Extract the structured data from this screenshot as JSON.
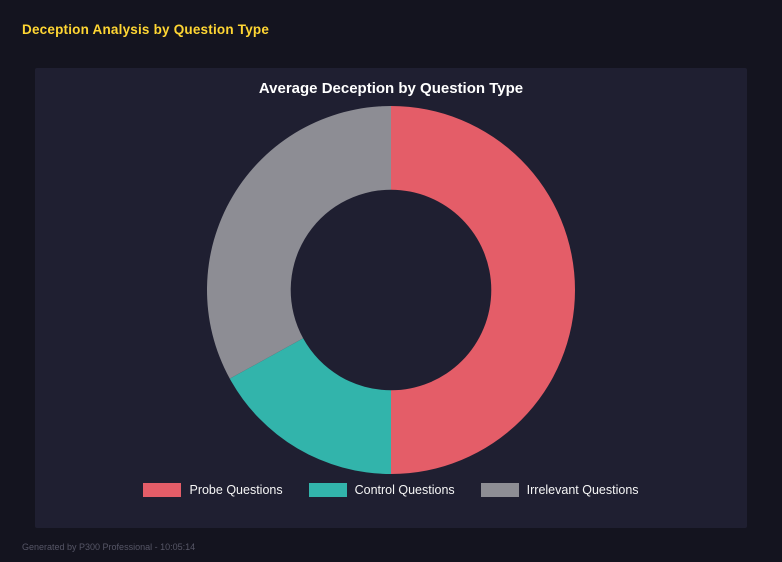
{
  "page": {
    "title": "Deception Analysis by Question Type",
    "footer": "Generated by P300 Professional - 10:05:14"
  },
  "chart_data": {
    "type": "pie",
    "donut": true,
    "title": "Average Deception by Question Type",
    "categories": [
      "Probe Questions",
      "Control Questions",
      "Irrelevant Questions"
    ],
    "values": [
      50,
      17,
      33
    ],
    "unit": "percent",
    "colors": [
      "#e45d68",
      "#32b4ab",
      "#8d8d94"
    ],
    "inner_radius_ratio": 0.545,
    "start_angle_deg": 0,
    "direction": "clockwise",
    "legend_position": "bottom"
  },
  "colors": {
    "background": "#14141f",
    "panel": "#1f1f31",
    "heading_text": "#ffd633",
    "chart_title_text": "#ffffff",
    "legend_text": "#f5f5f5",
    "footer_text": "#565666"
  }
}
